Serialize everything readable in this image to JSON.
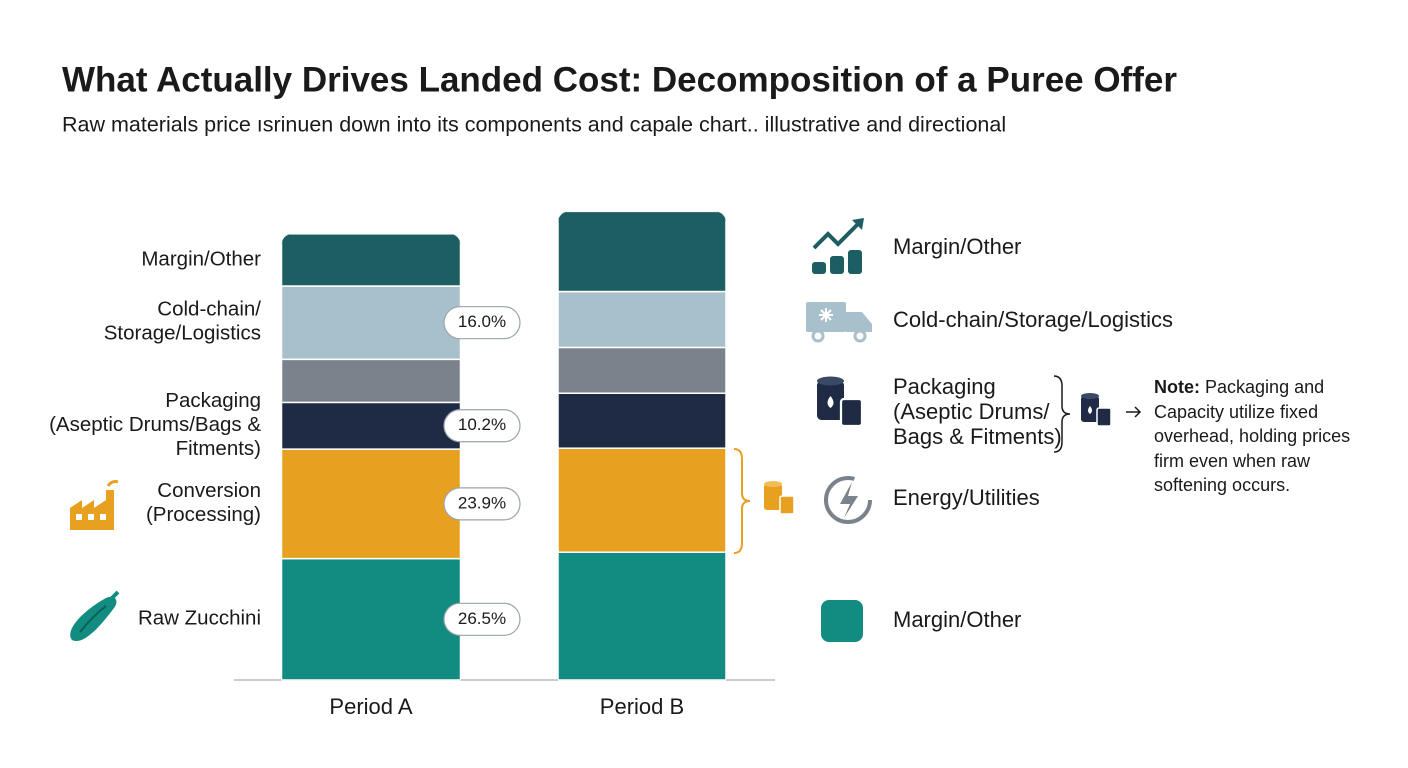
{
  "chart_data": {
    "type": "bar",
    "stacked": true,
    "title": "What Actually Drives Landed Cost: Decomposition of a Puree Offer",
    "subtitle": "Raw materials price ısrinuen down into its components and capale chart.. illustrative and directional",
    "categories": [
      "Period A",
      "Period B"
    ],
    "ylim": [
      0,
      105
    ],
    "series": [
      {
        "name": "Raw Zucchini",
        "color": "#128c80",
        "values": [
          26.5,
          27.9
        ],
        "value_labels": [
          "26.5%",
          null
        ]
      },
      {
        "name": "Conversion\n(Processing)",
        "color": "#e8a020",
        "values": [
          23.9,
          22.7
        ],
        "value_labels": [
          "23.9%",
          null
        ]
      },
      {
        "name": "Packaging\n(Aseptic Drums/Bags &\nFitments)",
        "color": "#1f2a44",
        "values": [
          10.2,
          12.0
        ],
        "value_labels": [
          "10.2%",
          null
        ]
      },
      {
        "name": null,
        "color": "#7a828c",
        "values": [
          9.4,
          10.0
        ]
      },
      {
        "name": "Cold-chain/\nStorage/Logistics",
        "color": "#a8bfcc",
        "values": [
          16.0,
          12.2
        ],
        "value_labels": [
          "16.0%",
          null
        ]
      },
      {
        "name": "Margin/Other",
        "color": "#1d5e63",
        "values": [
          11.4,
          17.5
        ]
      }
    ],
    "legend": [
      {
        "label": "Margin/Other",
        "icon": "growth"
      },
      {
        "label": "Cold-chain/Storage/Logistics",
        "icon": "truck"
      },
      {
        "label": "Packaging\n(Aseptic Drums/\nBags & Fitments)",
        "icon": "drums"
      },
      {
        "label": "Energy/Utilities",
        "icon": "energy"
      },
      {
        "label": "Margin/Other",
        "icon": "square"
      }
    ],
    "note": {
      "label": "Note:",
      "text": "Packaging and Capacity utilize fixed overhead, holding prices firm even when raw softening occurs."
    }
  }
}
